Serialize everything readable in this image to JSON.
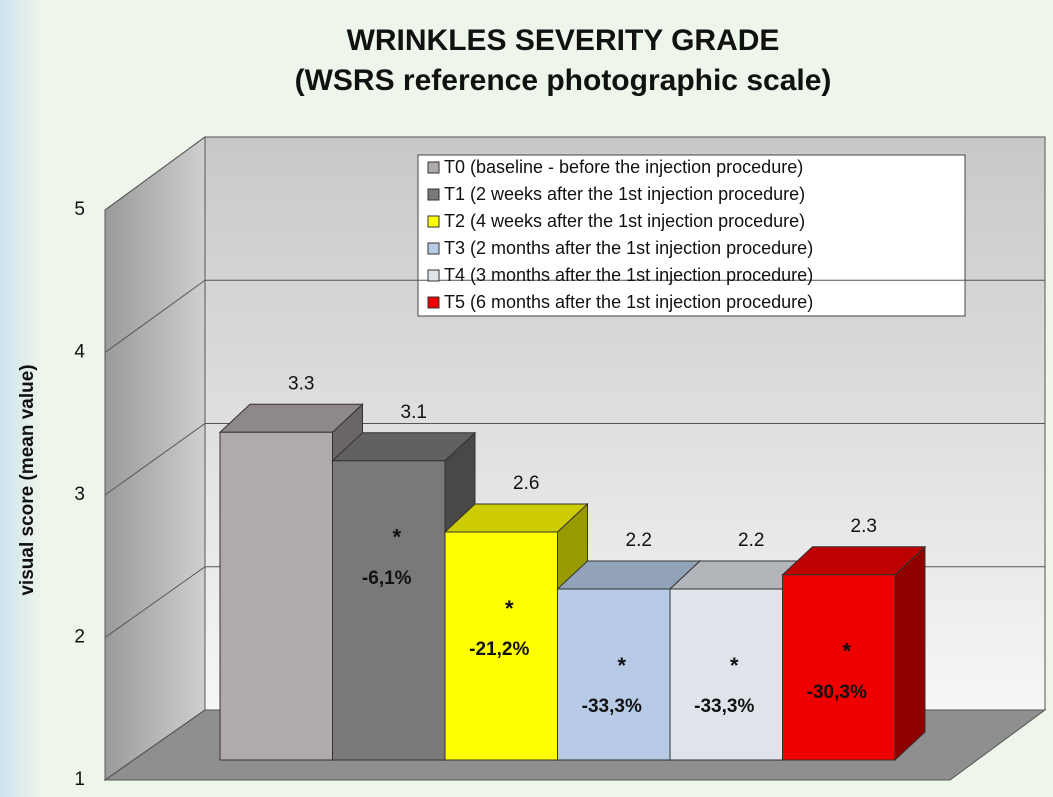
{
  "chart_data": {
    "type": "bar3d",
    "title": "WRINKLES SEVERITY GRADE",
    "subtitle": "(WSRS reference photographic scale)",
    "ylabel": "visual score (mean value)",
    "ylim": [
      1,
      5
    ],
    "yticks": [
      1,
      2,
      3,
      4,
      5
    ],
    "grid": true,
    "legend": "top-right",
    "series": [
      {
        "name": "T0 (baseline - before the injection procedure)",
        "color": "#b1aaaa",
        "values": [
          3.3
        ]
      },
      {
        "name": "T1 (2 weeks after the 1st injection procedure)",
        "color": "#7a7878",
        "values": [
          3.1
        ],
        "significance": "*",
        "change": "-6,1%"
      },
      {
        "name": "T2 (4 weeks after the 1st injection procedure)",
        "color": "#ffff00",
        "values": [
          2.6
        ],
        "significance": "*",
        "change": "-21,2%"
      },
      {
        "name": "T3 (2 months after the 1st injection procedure)",
        "color": "#b7cbe6",
        "values": [
          2.2
        ],
        "significance": "*",
        "change": "-33,3%"
      },
      {
        "name": "T4 (3 months after the 1st injection procedure)",
        "color": "#dfe3ea",
        "values": [
          2.2
        ],
        "significance": "*",
        "change": "-33,3%"
      },
      {
        "name": "T5 (6 months after the 1st injection procedure)",
        "color": "#ee0000",
        "values": [
          2.3
        ],
        "significance": "*",
        "change": "-30,3%"
      }
    ]
  }
}
